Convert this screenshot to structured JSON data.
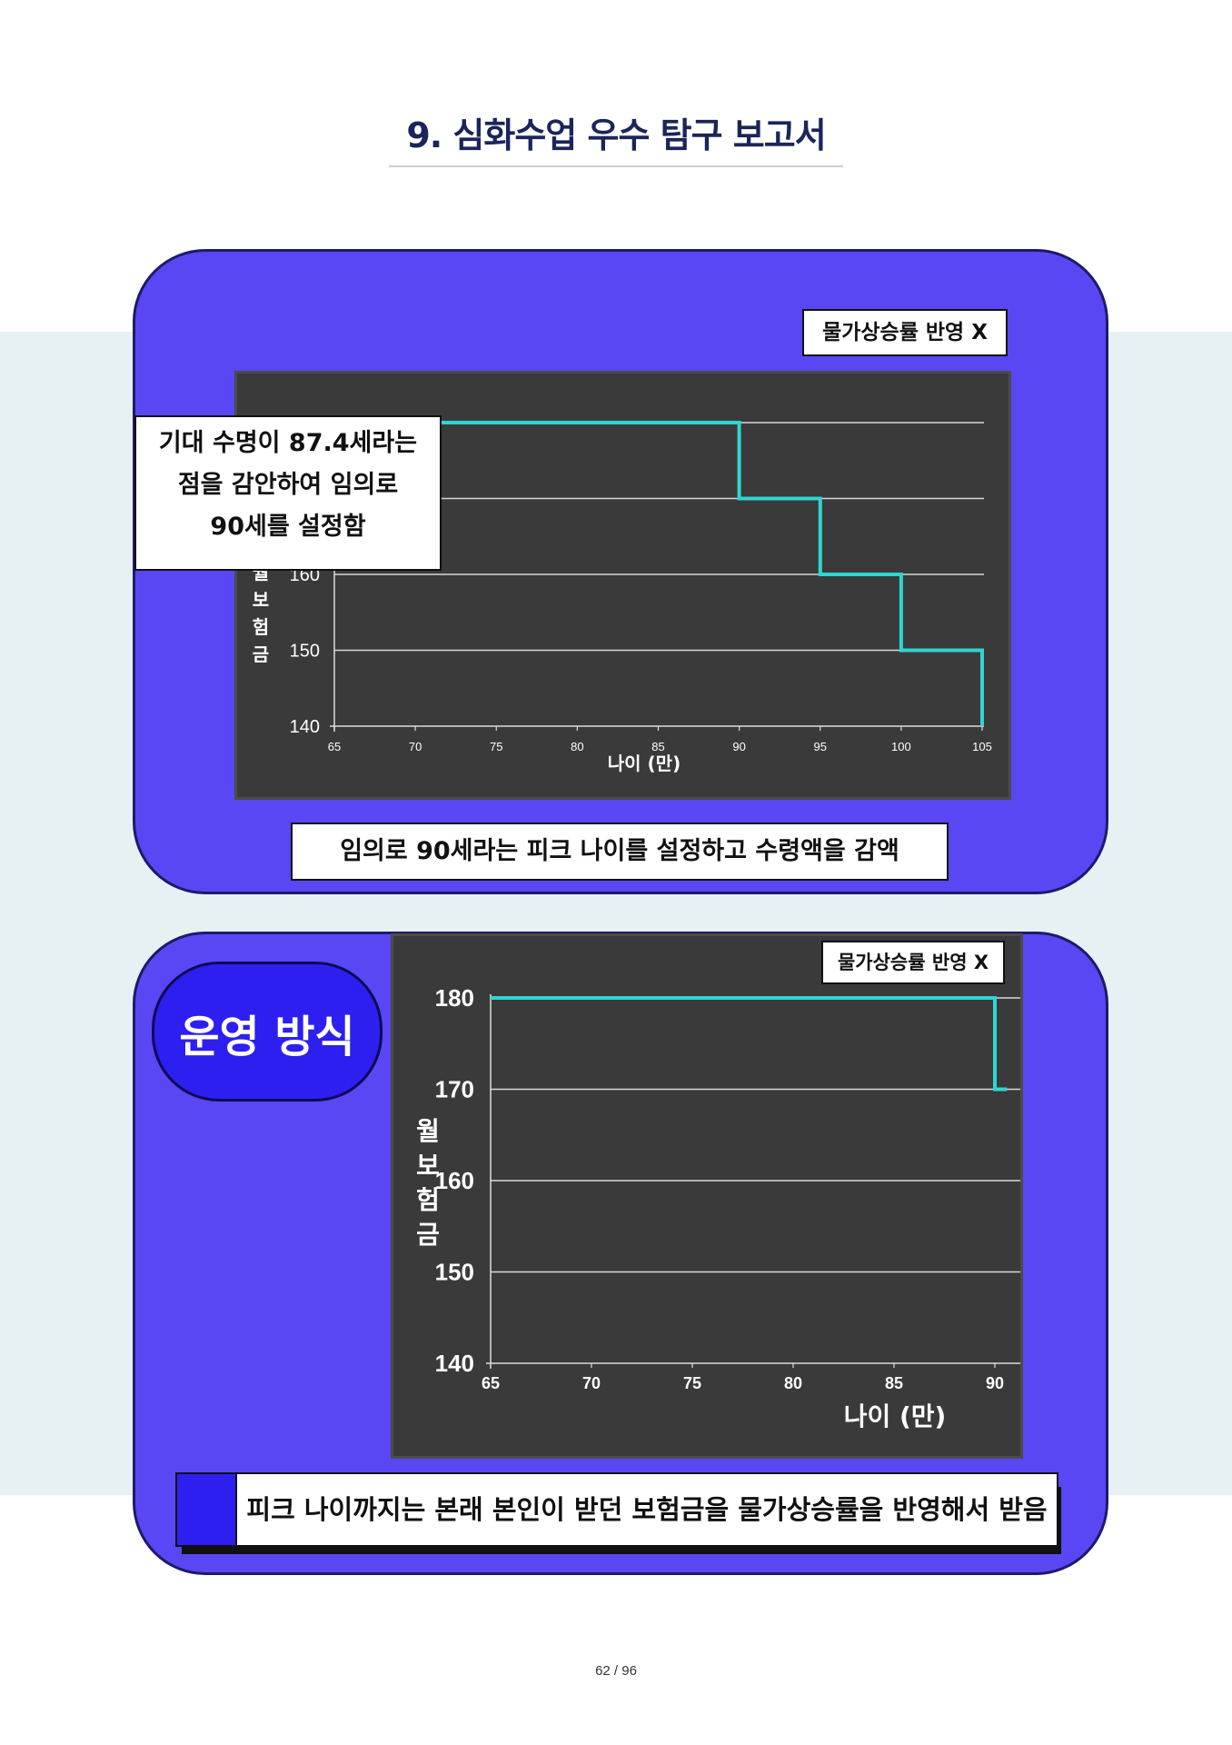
{
  "page": {
    "title": "9. 심화수업 우수 탐구 보고서",
    "page_number": "62 / 96"
  },
  "panel1": {
    "badge": "물가상승률 반영 X",
    "note": [
      "기대 수명이 87.4세라는",
      "점을 감안하여 임의로",
      "90세를 설정함"
    ],
    "caption": "임의로 90세라는 피크 나이를 설정하고 수령액을 감액"
  },
  "panel2": {
    "heading": "운영 방식",
    "badge": "물가상승률 반영 X",
    "caption": "피크 나이까지는 본래 본인이 받던 보험금을 물가상승률을 반영해서 받음"
  },
  "colors": {
    "panel": "#5847f2",
    "line": "#2fd6d0",
    "chart_bg": "#3a3a3a",
    "title": "#1b2559"
  },
  "chart_data": [
    {
      "type": "line",
      "x_ticks": [
        "65",
        "70",
        "75",
        "80",
        "85",
        "90",
        "95",
        "100",
        "105"
      ],
      "y_ticks": [
        "140",
        "150",
        "160"
      ],
      "xlabel": "나이 (만)",
      "ylabel": "월 보험금",
      "xlim": [
        65,
        105
      ],
      "ylim": [
        140,
        180
      ],
      "grid": true,
      "series": [
        {
          "x": [
            65,
            90,
            90,
            95,
            95,
            100,
            100,
            105,
            105
          ],
          "y": [
            180,
            180,
            170,
            170,
            160,
            160,
            150,
            150,
            140
          ]
        }
      ]
    },
    {
      "type": "line",
      "x_ticks": [
        "65",
        "70",
        "75",
        "80",
        "85",
        "90"
      ],
      "y_ticks": [
        "140",
        "150",
        "160",
        "170",
        "180"
      ],
      "xlabel": "나이 (만)",
      "ylabel": "월 보험금",
      "xlim": [
        65,
        90
      ],
      "ylim": [
        140,
        180
      ],
      "grid": true,
      "series": [
        {
          "x": [
            65,
            90,
            90,
            90.6
          ],
          "y": [
            180,
            180,
            170,
            170
          ]
        }
      ]
    }
  ]
}
